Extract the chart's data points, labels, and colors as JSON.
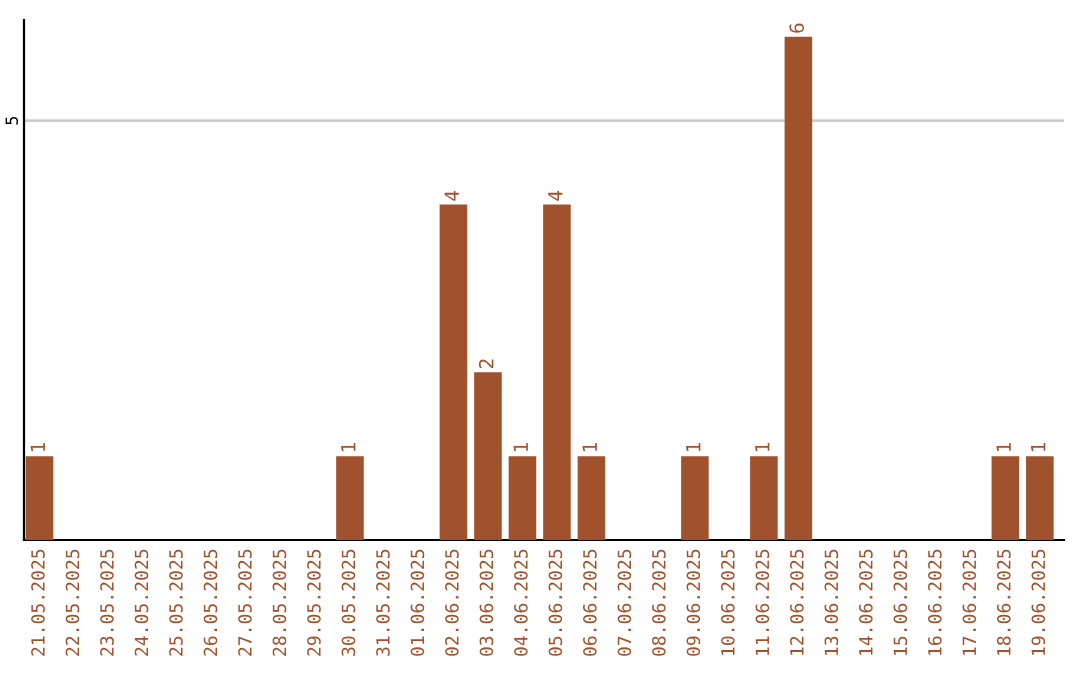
{
  "chart_data": {
    "type": "bar",
    "categories": [
      "21.05.2025",
      "22.05.2025",
      "23.05.2025",
      "24.05.2025",
      "25.05.2025",
      "26.05.2025",
      "27.05.2025",
      "28.05.2025",
      "29.05.2025",
      "30.05.2025",
      "31.05.2025",
      "01.06.2025",
      "02.06.2025",
      "03.06.2025",
      "04.06.2025",
      "05.06.2025",
      "06.06.2025",
      "07.06.2025",
      "08.06.2025",
      "09.06.2025",
      "10.06.2025",
      "11.06.2025",
      "12.06.2025",
      "13.06.2025",
      "14.06.2025",
      "15.06.2025",
      "16.06.2025",
      "17.06.2025",
      "18.06.2025",
      "19.06.2025"
    ],
    "values": [
      1,
      0,
      0,
      0,
      0,
      0,
      0,
      0,
      0,
      1,
      0,
      0,
      4,
      2,
      1,
      4,
      1,
      0,
      0,
      1,
      0,
      1,
      6,
      0,
      0,
      0,
      0,
      0,
      1,
      1
    ],
    "value_labels": [
      "1",
      null,
      null,
      null,
      null,
      null,
      null,
      null,
      null,
      "1",
      null,
      null,
      "4",
      "2",
      "1",
      "4",
      "1",
      null,
      null,
      "1",
      null,
      "1",
      "6",
      null,
      null,
      null,
      null,
      null,
      "1",
      "1"
    ],
    "color": "#a0522d",
    "ylim": [
      0,
      6.2
    ],
    "yticks": [
      5
    ],
    "grid": "y",
    "legend": false
  }
}
